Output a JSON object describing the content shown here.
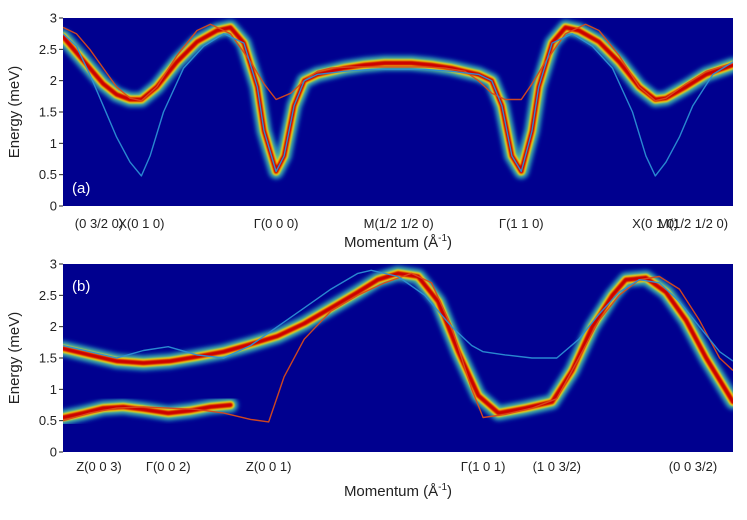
{
  "colors": {
    "background": "#00008f",
    "ridge_core": "#cc0000",
    "ridge_mid": "#ffd000",
    "ridge_edge": "#22c6e6",
    "curve_red": "#d94a1a",
    "curve_blue": "#2b8fd4"
  },
  "chart_data": [
    {
      "type": "heatmap",
      "panel_label": "(a)",
      "xlabel": "Momentum (Å",
      "xlabel_sup": "-1",
      "xlabel_close": ")",
      "ylabel": "Energy (meV)",
      "xlim": [
        0,
        1
      ],
      "ylim": [
        0,
        3
      ],
      "yticks": [
        0,
        0.5,
        1,
        1.5,
        2,
        2.5,
        3
      ],
      "ytick_labels": [
        "0",
        "0.5",
        "1",
        "1.5",
        "2",
        "2.5",
        "3"
      ],
      "xticks": [
        {
          "x": 0.0,
          "label": "(0 3/2 0)"
        },
        {
          "x": 0.117,
          "label": "X(0 1 0)"
        },
        {
          "x": 0.318,
          "label": "Γ(0 0 0)"
        },
        {
          "x": 0.501,
          "label": "M(1/2 1/2 0)"
        },
        {
          "x": 0.684,
          "label": "Γ(1 1 0)"
        },
        {
          "x": 0.884,
          "label": "X(0 1 0)"
        },
        {
          "x": 1.0,
          "label": "M(1/2 1/2 0)"
        }
      ],
      "series": [
        {
          "role": "intensity-ridge",
          "x": [
            0.0,
            0.02,
            0.04,
            0.06,
            0.08,
            0.1,
            0.117,
            0.14,
            0.17,
            0.2,
            0.23,
            0.25,
            0.27,
            0.29,
            0.3,
            0.318,
            0.33,
            0.345,
            0.36,
            0.38,
            0.4,
            0.42,
            0.45,
            0.48,
            0.501,
            0.52,
            0.55,
            0.58,
            0.6,
            0.62,
            0.64,
            0.655,
            0.67,
            0.684,
            0.7,
            0.71,
            0.73,
            0.75,
            0.77,
            0.8,
            0.83,
            0.86,
            0.884,
            0.9,
            0.93,
            0.96,
            1.0
          ],
          "y": [
            2.7,
            2.45,
            2.2,
            1.95,
            1.78,
            1.7,
            1.7,
            1.9,
            2.3,
            2.62,
            2.8,
            2.85,
            2.6,
            1.9,
            1.2,
            0.55,
            0.8,
            1.6,
            2.0,
            2.1,
            2.15,
            2.2,
            2.25,
            2.28,
            2.28,
            2.28,
            2.25,
            2.2,
            2.15,
            2.1,
            2.0,
            1.6,
            0.8,
            0.55,
            1.2,
            1.9,
            2.6,
            2.85,
            2.8,
            2.62,
            2.3,
            1.9,
            1.7,
            1.72,
            1.9,
            2.1,
            2.25
          ]
        },
        {
          "role": "model-curve-red",
          "x": [
            0.0,
            0.02,
            0.04,
            0.06,
            0.08,
            0.1,
            0.117,
            0.14,
            0.17,
            0.2,
            0.22,
            0.25,
            0.28,
            0.3,
            0.318,
            0.34,
            0.36,
            0.38,
            0.4,
            0.43,
            0.46,
            0.501,
            0.54,
            0.57,
            0.6,
            0.62,
            0.64,
            0.66,
            0.684,
            0.7,
            0.72,
            0.75,
            0.78,
            0.8,
            0.83,
            0.86,
            0.884,
            0.9,
            0.93,
            0.96,
            1.0
          ],
          "y": [
            2.85,
            2.75,
            2.5,
            2.2,
            1.9,
            1.72,
            1.68,
            1.9,
            2.4,
            2.8,
            2.9,
            2.75,
            2.3,
            1.95,
            1.7,
            1.8,
            2.0,
            2.15,
            2.2,
            2.22,
            2.22,
            2.22,
            2.22,
            2.2,
            2.15,
            2.0,
            1.8,
            1.7,
            1.7,
            1.95,
            2.3,
            2.75,
            2.9,
            2.8,
            2.4,
            1.9,
            1.68,
            1.72,
            1.95,
            2.15,
            2.28
          ]
        },
        {
          "role": "model-curve-blue",
          "x": [
            0.0,
            0.02,
            0.04,
            0.06,
            0.08,
            0.1,
            0.117,
            0.13,
            0.15,
            0.18,
            0.21,
            0.24,
            0.27,
            0.29,
            0.3,
            0.318,
            0.33,
            0.345,
            0.36,
            0.38,
            0.42,
            0.46,
            0.501,
            0.54,
            0.58,
            0.62,
            0.64,
            0.655,
            0.67,
            0.684,
            0.7,
            0.71,
            0.73,
            0.76,
            0.79,
            0.82,
            0.85,
            0.87,
            0.884,
            0.9,
            0.92,
            0.94,
            0.97,
            1.0
          ],
          "y": [
            2.75,
            2.55,
            2.1,
            1.6,
            1.1,
            0.7,
            0.48,
            0.8,
            1.5,
            2.2,
            2.55,
            2.75,
            2.6,
            1.9,
            1.2,
            0.55,
            0.8,
            1.6,
            2.0,
            2.1,
            2.15,
            2.18,
            2.18,
            2.18,
            2.15,
            2.1,
            2.0,
            1.6,
            0.8,
            0.55,
            1.2,
            1.9,
            2.6,
            2.75,
            2.55,
            2.2,
            1.5,
            0.8,
            0.48,
            0.7,
            1.1,
            1.6,
            2.1,
            2.3
          ]
        }
      ]
    },
    {
      "type": "heatmap",
      "panel_label": "(b)",
      "xlabel": "Momentum (Å",
      "xlabel_sup": "-1",
      "xlabel_close": ")",
      "ylabel": "Energy (meV)",
      "xlim": [
        0,
        1
      ],
      "ylim": [
        0,
        3
      ],
      "yticks": [
        0,
        0.5,
        1,
        1.5,
        2,
        2.5,
        3
      ],
      "ytick_labels": [
        "0",
        "0.5",
        "1",
        "1.5",
        "2",
        "2.5",
        "3"
      ],
      "xticks": [
        {
          "x": 0.0,
          "label": "Z(0 0 3)"
        },
        {
          "x": 0.157,
          "label": "Γ(0 0 2)"
        },
        {
          "x": 0.307,
          "label": "Z(0 0 1)"
        },
        {
          "x": 0.627,
          "label": "Γ(1 0 1)"
        },
        {
          "x": 0.737,
          "label": "(1 0 3/2)"
        },
        {
          "x": 1.0,
          "label": "(0 0 3/2)"
        }
      ],
      "series": [
        {
          "role": "intensity-ridge-upper",
          "x": [
            0.0,
            0.04,
            0.08,
            0.12,
            0.16,
            0.2,
            0.24,
            0.28,
            0.32,
            0.36,
            0.4,
            0.44,
            0.47,
            0.5,
            0.53,
            0.56,
            0.59,
            0.62,
            0.65,
            0.69,
            0.73,
            0.76,
            0.79,
            0.82,
            0.84,
            0.87,
            0.9,
            0.93,
            0.96,
            1.0
          ],
          "y": [
            1.65,
            1.55,
            1.45,
            1.42,
            1.45,
            1.52,
            1.6,
            1.72,
            1.85,
            2.05,
            2.3,
            2.55,
            2.75,
            2.85,
            2.8,
            2.4,
            1.6,
            0.9,
            0.62,
            0.7,
            0.8,
            1.3,
            2.0,
            2.5,
            2.75,
            2.78,
            2.55,
            2.1,
            1.5,
            0.8
          ]
        },
        {
          "role": "intensity-ridge-lower",
          "x": [
            0.0,
            0.03,
            0.06,
            0.09,
            0.12,
            0.157,
            0.19,
            0.22,
            0.25
          ],
          "y": [
            0.55,
            0.62,
            0.7,
            0.72,
            0.68,
            0.62,
            0.66,
            0.72,
            0.75
          ]
        },
        {
          "role": "model-curve-red",
          "x": [
            0.0,
            0.04,
            0.08,
            0.12,
            0.157,
            0.2,
            0.24,
            0.28,
            0.307,
            0.33,
            0.36,
            0.4,
            0.44,
            0.48,
            0.52,
            0.55,
            0.58,
            0.61,
            0.627,
            0.66,
            0.7,
            0.737,
            0.77,
            0.8,
            0.83,
            0.86,
            0.89,
            0.92,
            0.95,
            0.98,
            1.0
          ],
          "y": [
            0.5,
            0.62,
            0.7,
            0.72,
            0.7,
            0.68,
            0.62,
            0.52,
            0.48,
            1.2,
            1.8,
            2.25,
            2.5,
            2.7,
            2.85,
            2.7,
            2.0,
            1.0,
            0.55,
            0.6,
            0.7,
            0.85,
            1.5,
            2.1,
            2.5,
            2.75,
            2.8,
            2.6,
            2.1,
            1.5,
            1.3
          ]
        },
        {
          "role": "model-curve-blue",
          "x": [
            0.0,
            0.04,
            0.08,
            0.12,
            0.157,
            0.2,
            0.24,
            0.28,
            0.32,
            0.36,
            0.4,
            0.44,
            0.46,
            0.5,
            0.54,
            0.58,
            0.61,
            0.627,
            0.66,
            0.7,
            0.737,
            0.77,
            0.8,
            0.83,
            0.86,
            0.89,
            0.92,
            0.95,
            0.98,
            1.0
          ],
          "y": [
            1.7,
            1.6,
            1.5,
            1.62,
            1.68,
            1.55,
            1.5,
            1.7,
            2.0,
            2.3,
            2.6,
            2.85,
            2.9,
            2.8,
            2.5,
            2.0,
            1.7,
            1.6,
            1.55,
            1.5,
            1.5,
            1.8,
            2.2,
            2.55,
            2.75,
            2.7,
            2.4,
            2.0,
            1.6,
            1.45
          ]
        }
      ]
    }
  ]
}
